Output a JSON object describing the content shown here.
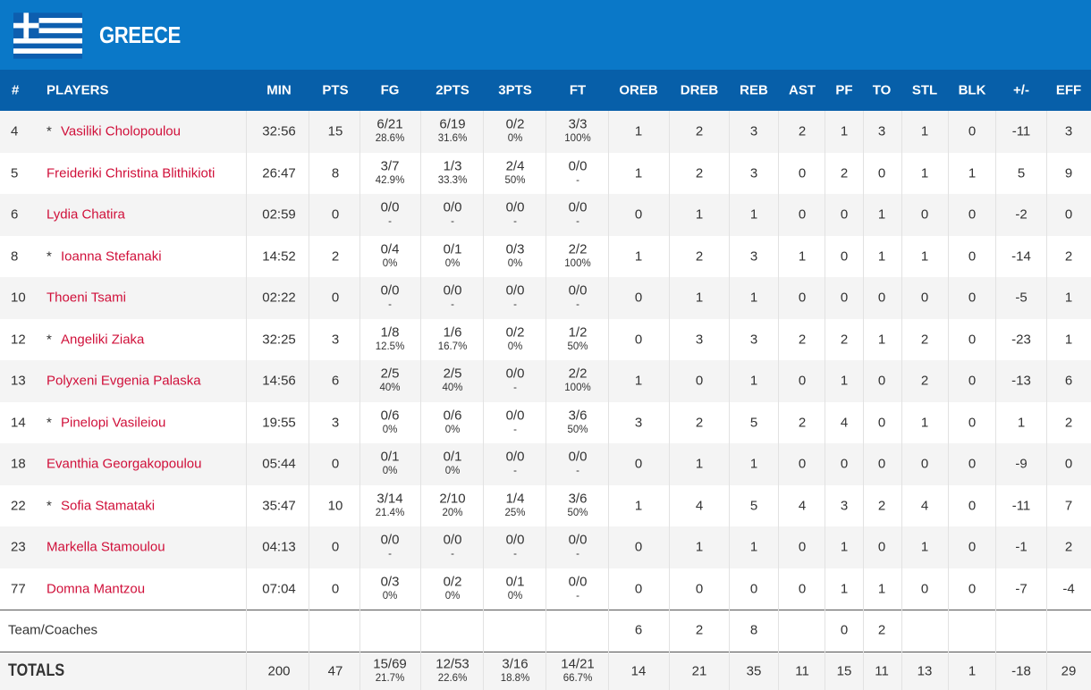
{
  "header": {
    "title": "GREECE"
  },
  "table": {
    "columns": [
      "#",
      "PLAYERS",
      "MIN",
      "PTS",
      "FG",
      "2PTS",
      "3PTS",
      "FT",
      "OREB",
      "DREB",
      "REB",
      "AST",
      "PF",
      "TO",
      "STL",
      "BLK",
      "+/-",
      "EFF"
    ],
    "rows": [
      {
        "number": 4,
        "starter": "*",
        "name": "Vasiliki Cholopoulou",
        "cells": [
          "32:56",
          15,
          [
            "6/21",
            "28.6%"
          ],
          [
            "6/19",
            "31.6%"
          ],
          [
            "0/2",
            "0%"
          ],
          [
            "3/3",
            "100%"
          ],
          1,
          2,
          3,
          2,
          1,
          3,
          1,
          0,
          -11,
          3
        ]
      },
      {
        "number": 5,
        "name": "Freideriki Christina Blithikioti",
        "cells": [
          "26:47",
          8,
          [
            "3/7",
            "42.9%"
          ],
          [
            "1/3",
            "33.3%"
          ],
          [
            "2/4",
            "50%"
          ],
          [
            "0/0",
            "-"
          ],
          1,
          2,
          3,
          0,
          2,
          0,
          1,
          1,
          5,
          9
        ]
      },
      {
        "number": 6,
        "name": "Lydia Chatira",
        "cells": [
          "02:59",
          0,
          [
            "0/0",
            "-"
          ],
          [
            "0/0",
            "-"
          ],
          [
            "0/0",
            "-"
          ],
          [
            "0/0",
            "-"
          ],
          0,
          1,
          1,
          0,
          0,
          1,
          0,
          0,
          -2,
          0
        ]
      },
      {
        "number": 8,
        "starter": "*",
        "name": "Ioanna Stefanaki",
        "cells": [
          "14:52",
          2,
          [
            "0/4",
            "0%"
          ],
          [
            "0/1",
            "0%"
          ],
          [
            "0/3",
            "0%"
          ],
          [
            "2/2",
            "100%"
          ],
          1,
          2,
          3,
          1,
          0,
          1,
          1,
          0,
          -14,
          2
        ]
      },
      {
        "number": 10,
        "name": "Thoeni Tsami",
        "cells": [
          "02:22",
          0,
          [
            "0/0",
            "-"
          ],
          [
            "0/0",
            "-"
          ],
          [
            "0/0",
            "-"
          ],
          [
            "0/0",
            "-"
          ],
          0,
          1,
          1,
          0,
          0,
          0,
          0,
          0,
          -5,
          1
        ]
      },
      {
        "number": 12,
        "starter": "*",
        "name": "Angeliki Ziaka",
        "cells": [
          "32:25",
          3,
          [
            "1/8",
            "12.5%"
          ],
          [
            "1/6",
            "16.7%"
          ],
          [
            "0/2",
            "0%"
          ],
          [
            "1/2",
            "50%"
          ],
          0,
          3,
          3,
          2,
          2,
          1,
          2,
          0,
          -23,
          1
        ]
      },
      {
        "number": 13,
        "name": "Polyxeni Evgenia Palaska",
        "cells": [
          "14:56",
          6,
          [
            "2/5",
            "40%"
          ],
          [
            "2/5",
            "40%"
          ],
          [
            "0/0",
            "-"
          ],
          [
            "2/2",
            "100%"
          ],
          1,
          0,
          1,
          0,
          1,
          0,
          2,
          0,
          -13,
          6
        ]
      },
      {
        "number": 14,
        "starter": "*",
        "name": "Pinelopi Vasileiou",
        "cells": [
          "19:55",
          3,
          [
            "0/6",
            "0%"
          ],
          [
            "0/6",
            "0%"
          ],
          [
            "0/0",
            "-"
          ],
          [
            "3/6",
            "50%"
          ],
          3,
          2,
          5,
          2,
          4,
          0,
          1,
          0,
          1,
          2
        ]
      },
      {
        "number": 18,
        "name": "Evanthia Georgakopoulou",
        "cells": [
          "05:44",
          0,
          [
            "0/1",
            "0%"
          ],
          [
            "0/1",
            "0%"
          ],
          [
            "0/0",
            "-"
          ],
          [
            "0/0",
            "-"
          ],
          0,
          1,
          1,
          0,
          0,
          0,
          0,
          0,
          -9,
          0
        ]
      },
      {
        "number": 22,
        "starter": "*",
        "name": "Sofia Stamataki",
        "cells": [
          "35:47",
          10,
          [
            "3/14",
            "21.4%"
          ],
          [
            "2/10",
            "20%"
          ],
          [
            "1/4",
            "25%"
          ],
          [
            "3/6",
            "50%"
          ],
          1,
          4,
          5,
          4,
          3,
          2,
          4,
          0,
          -11,
          7
        ]
      },
      {
        "number": 23,
        "name": "Markella Stamoulou",
        "cells": [
          "04:13",
          0,
          [
            "0/0",
            "-"
          ],
          [
            "0/0",
            "-"
          ],
          [
            "0/0",
            "-"
          ],
          [
            "0/0",
            "-"
          ],
          0,
          1,
          1,
          0,
          1,
          0,
          1,
          0,
          -1,
          2
        ]
      },
      {
        "number": 77,
        "name": "Domna Mantzou",
        "cells": [
          "07:04",
          0,
          [
            "0/3",
            "0%"
          ],
          [
            "0/2",
            "0%"
          ],
          [
            "0/1",
            "0%"
          ],
          [
            "0/0",
            "-"
          ],
          0,
          0,
          0,
          0,
          1,
          1,
          0,
          0,
          -7,
          -4
        ]
      }
    ],
    "team": {
      "label": "Team/Coaches",
      "cells": [
        null,
        null,
        null,
        null,
        null,
        null,
        6,
        2,
        8,
        null,
        0,
        2,
        null,
        null,
        null,
        null
      ]
    },
    "totals": {
      "label": "TOTALS",
      "cells": [
        200,
        47,
        [
          "15/69",
          "21.7%"
        ],
        [
          "12/53",
          "22.6%"
        ],
        [
          "3/16",
          "18.8%"
        ],
        [
          "14/21",
          "66.7%"
        ],
        14,
        21,
        35,
        11,
        15,
        11,
        13,
        1,
        -18,
        29
      ]
    }
  }
}
